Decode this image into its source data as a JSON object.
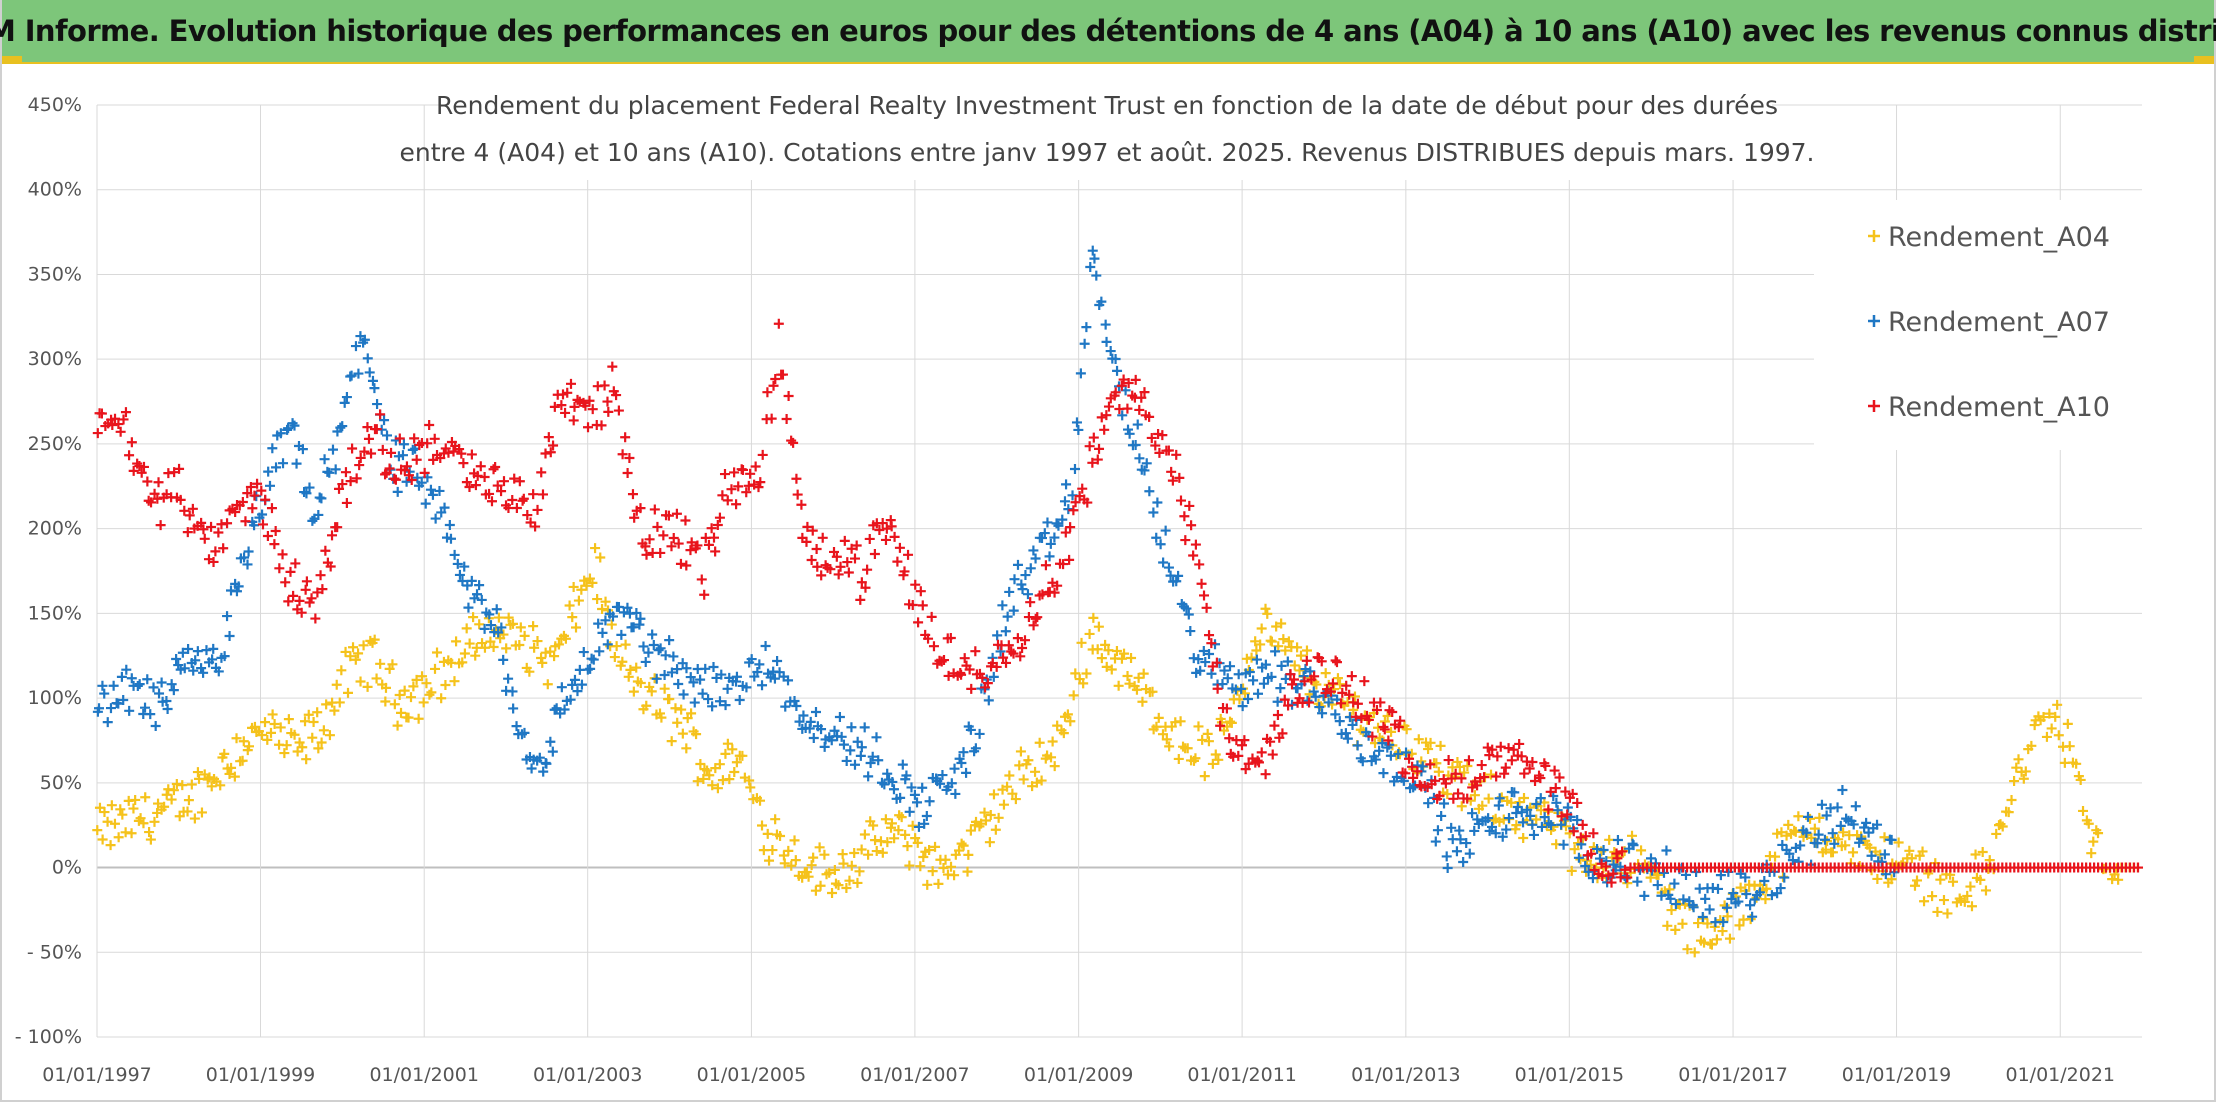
{
  "banner": {
    "text": "ADAM Informe. Evolution historique des performances en euros pour des détentions de 4 ans (A04) à 10 ans (A10) avec les revenus connus distribués",
    "color": "#7dc67a"
  },
  "chart_data": {
    "type": "scatter",
    "title_line1": "Rendement du placement Federal Realty Investment Trust en fonction de la date de début pour des durées",
    "title_line2": "entre 4 (A04) et 10 ans (A10). Cotations entre janv 1997 et août. 2025. Revenus DISTRIBUES depuis mars. 1997.",
    "xlabel": "",
    "ylabel": "",
    "x_range": [
      "1997-01-01",
      "2022-01-01"
    ],
    "y_range": [
      -100,
      450
    ],
    "y_ticks": [
      450,
      400,
      350,
      300,
      250,
      200,
      150,
      100,
      50,
      0,
      -50,
      -100
    ],
    "y_tick_labels": [
      "450%",
      "400%",
      "350%",
      "300%",
      "250%",
      "200%",
      "150%",
      "100%",
      "50%",
      "0%",
      "- 50%",
      "- 100%"
    ],
    "x_ticks": [
      "1997-01-01",
      "1999-01-01",
      "2001-01-01",
      "2003-01-01",
      "2005-01-01",
      "2007-01-01",
      "2009-01-01",
      "2011-01-01",
      "2013-01-01",
      "2015-01-01",
      "2017-01-01",
      "2019-01-01",
      "2021-01-01"
    ],
    "x_tick_labels": [
      "01/01/1997",
      "01/01/1999",
      "01/01/2001",
      "01/01/2003",
      "01/01/2005",
      "01/01/2007",
      "01/01/2009",
      "01/01/2011",
      "01/01/2013",
      "01/01/2015",
      "01/01/2017",
      "01/01/2019",
      "01/01/2021"
    ],
    "grid": true,
    "legend_position": "top-right",
    "series": [
      {
        "name": "Rendement_A04",
        "color": "#f5c21b",
        "points": [
          [
            "1997-01-01",
            20
          ],
          [
            "1997-06-01",
            28
          ],
          [
            "1997-12-01",
            35
          ],
          [
            "1998-03-01",
            42
          ],
          [
            "1998-07-01",
            58
          ],
          [
            "1998-11-01",
            75
          ],
          [
            "1999-02-01",
            80
          ],
          [
            "1999-06-01",
            70
          ],
          [
            "1999-10-01",
            82
          ],
          [
            "2000-01-01",
            110
          ],
          [
            "2000-05-01",
            125
          ],
          [
            "2000-09-01",
            100
          ],
          [
            "2001-01-01",
            105
          ],
          [
            "2001-05-01",
            120
          ],
          [
            "2001-10-01",
            140
          ],
          [
            "2002-03-01",
            135
          ],
          [
            "2002-08-01",
            120
          ],
          [
            "2002-11-01",
            150
          ],
          [
            "2003-02-01",
            180
          ],
          [
            "2003-05-01",
            125
          ],
          [
            "2003-10-01",
            100
          ],
          [
            "2004-03-01",
            85
          ],
          [
            "2004-07-01",
            55
          ],
          [
            "2004-11-01",
            65
          ],
          [
            "2005-03-01",
            25
          ],
          [
            "2005-08-01",
            5
          ],
          [
            "2005-12-01",
            -5
          ],
          [
            "2006-05-01",
            5
          ],
          [
            "2006-09-01",
            20
          ],
          [
            "2007-01-01",
            15
          ],
          [
            "2007-04-01",
            -2
          ],
          [
            "2007-09-01",
            10
          ],
          [
            "2008-01-01",
            35
          ],
          [
            "2008-05-01",
            55
          ],
          [
            "2008-10-01",
            70
          ],
          [
            "2009-03-01",
            140
          ],
          [
            "2009-07-01",
            120
          ],
          [
            "2009-11-01",
            100
          ],
          [
            "2010-04-01",
            75
          ],
          [
            "2010-09-01",
            65
          ],
          [
            "2011-01-01",
            110
          ],
          [
            "2011-04-01",
            145
          ],
          [
            "2011-09-01",
            120
          ],
          [
            "2012-01-01",
            105
          ],
          [
            "2012-06-01",
            90
          ],
          [
            "2012-10-01",
            80
          ],
          [
            "2013-03-01",
            70
          ],
          [
            "2013-07-01",
            55
          ],
          [
            "2013-12-01",
            40
          ],
          [
            "2014-05-01",
            35
          ],
          [
            "2014-10-01",
            25
          ],
          [
            "2015-03-01",
            5
          ],
          [
            "2015-08-01",
            10
          ],
          [
            "2016-01-01",
            -5
          ],
          [
            "2016-06-01",
            -35
          ],
          [
            "2016-10-01",
            -42
          ],
          [
            "2017-03-01",
            -20
          ],
          [
            "2017-08-01",
            10
          ],
          [
            "2018-01-01",
            25
          ],
          [
            "2018-06-01",
            10
          ],
          [
            "2018-11-01",
            5
          ],
          [
            "2019-04-01",
            0
          ],
          [
            "2019-09-01",
            -15
          ],
          [
            "2020-02-01",
            -5
          ],
          [
            "2020-07-01",
            55
          ],
          [
            "2020-11-01",
            90
          ],
          [
            "2021-02-01",
            75
          ],
          [
            "2021-06-01",
            10
          ],
          [
            "2021-10-01",
            0
          ],
          [
            "2022-01-01",
            0
          ]
        ]
      },
      {
        "name": "Rendement_A07",
        "color": "#1f77c4",
        "points": [
          [
            "1997-01-01",
            90
          ],
          [
            "1997-05-01",
            105
          ],
          [
            "1997-10-01",
            95
          ],
          [
            "1998-02-01",
            115
          ],
          [
            "1998-07-01",
            125
          ],
          [
            "1998-11-01",
            180
          ],
          [
            "1999-02-01",
            230
          ],
          [
            "1999-06-01",
            255
          ],
          [
            "1999-09-01",
            205
          ],
          [
            "2000-01-01",
            260
          ],
          [
            "2000-04-01",
            320
          ],
          [
            "2000-08-01",
            240
          ],
          [
            "2000-12-01",
            230
          ],
          [
            "2001-04-01",
            200
          ],
          [
            "2001-08-01",
            160
          ],
          [
            "2001-12-01",
            140
          ],
          [
            "2002-03-01",
            80
          ],
          [
            "2002-06-01",
            60
          ],
          [
            "2002-10-01",
            100
          ],
          [
            "2003-02-01",
            130
          ],
          [
            "2003-06-01",
            150
          ],
          [
            "2003-10-01",
            130
          ],
          [
            "2004-02-01",
            115
          ],
          [
            "2004-06-01",
            110
          ],
          [
            "2004-11-01",
            105
          ],
          [
            "2005-03-01",
            125
          ],
          [
            "2005-08-01",
            95
          ],
          [
            "2005-12-01",
            80
          ],
          [
            "2006-05-01",
            70
          ],
          [
            "2006-10-01",
            55
          ],
          [
            "2007-02-01",
            35
          ],
          [
            "2007-06-01",
            50
          ],
          [
            "2007-10-01",
            80
          ],
          [
            "2008-03-01",
            160
          ],
          [
            "2008-08-01",
            185
          ],
          [
            "2008-12-01",
            220
          ],
          [
            "2009-03-01",
            360
          ],
          [
            "2009-06-01",
            300
          ],
          [
            "2009-10-01",
            240
          ],
          [
            "2010-03-01",
            170
          ],
          [
            "2010-07-01",
            120
          ],
          [
            "2010-12-01",
            110
          ],
          [
            "2011-05-01",
            115
          ],
          [
            "2011-10-01",
            110
          ],
          [
            "2012-03-01",
            90
          ],
          [
            "2012-08-01",
            70
          ],
          [
            "2012-12-01",
            65
          ],
          [
            "2013-04-01",
            45
          ],
          [
            "2013-08-01",
            10
          ],
          [
            "2014-01-01",
            25
          ],
          [
            "2014-06-01",
            35
          ],
          [
            "2014-11-01",
            30
          ],
          [
            "2015-04-01",
            5
          ],
          [
            "2015-09-01",
            5
          ],
          [
            "2016-02-01",
            -5
          ],
          [
            "2016-07-01",
            -15
          ],
          [
            "2016-12-01",
            -20
          ],
          [
            "2017-05-01",
            -10
          ],
          [
            "2017-09-01",
            5
          ],
          [
            "2018-02-01",
            25
          ],
          [
            "2018-06-01",
            35
          ],
          [
            "2018-09-01",
            15
          ],
          [
            "2019-01-01",
            5
          ]
        ]
      },
      {
        "name": "Rendement_A10",
        "color": "#e8141c",
        "points": [
          [
            "1997-01-01",
            270
          ],
          [
            "1997-05-01",
            260
          ],
          [
            "1997-09-01",
            215
          ],
          [
            "1998-01-01",
            225
          ],
          [
            "1998-05-01",
            185
          ],
          [
            "1998-10-01",
            210
          ],
          [
            "1999-01-01",
            220
          ],
          [
            "1999-05-01",
            170
          ],
          [
            "1999-09-01",
            155
          ],
          [
            "2000-01-01",
            220
          ],
          [
            "2000-05-01",
            260
          ],
          [
            "2000-09-01",
            235
          ],
          [
            "2001-01-01",
            250
          ],
          [
            "2001-05-01",
            245
          ],
          [
            "2001-09-01",
            225
          ],
          [
            "2002-01-01",
            225
          ],
          [
            "2002-05-01",
            210
          ],
          [
            "2002-09-01",
            280
          ],
          [
            "2003-01-01",
            270
          ],
          [
            "2003-05-01",
            280
          ],
          [
            "2003-09-01",
            195
          ],
          [
            "2004-02-01",
            200
          ],
          [
            "2004-06-01",
            175
          ],
          [
            "2004-10-01",
            230
          ],
          [
            "2005-02-01",
            225
          ],
          [
            "2005-05-01",
            310
          ],
          [
            "2005-09-01",
            185
          ],
          [
            "2006-01-01",
            190
          ],
          [
            "2006-05-01",
            175
          ],
          [
            "2006-09-01",
            200
          ],
          [
            "2007-01-01",
            160
          ],
          [
            "2007-05-01",
            125
          ],
          [
            "2007-09-01",
            115
          ],
          [
            "2008-02-01",
            125
          ],
          [
            "2008-06-01",
            150
          ],
          [
            "2008-10-01",
            175
          ],
          [
            "2009-03-01",
            240
          ],
          [
            "2009-07-01",
            280
          ],
          [
            "2009-11-01",
            275
          ],
          [
            "2010-03-01",
            235
          ],
          [
            "2010-07-01",
            170
          ],
          [
            "2010-11-01",
            70
          ],
          [
            "2011-04-01",
            60
          ],
          [
            "2011-08-01",
            100
          ],
          [
            "2011-12-01",
            115
          ],
          [
            "2012-05-01",
            105
          ],
          [
            "2012-10-01",
            85
          ],
          [
            "2013-03-01",
            60
          ],
          [
            "2013-08-01",
            45
          ],
          [
            "2014-01-01",
            60
          ],
          [
            "2014-05-01",
            65
          ],
          [
            "2014-10-01",
            45
          ],
          [
            "2015-03-01",
            25
          ],
          [
            "2015-06-01",
            -5
          ],
          [
            "2015-10-01",
            0
          ],
          [
            "2016-01-01",
            0
          ],
          [
            "2022-01-01",
            0
          ]
        ]
      }
    ]
  }
}
